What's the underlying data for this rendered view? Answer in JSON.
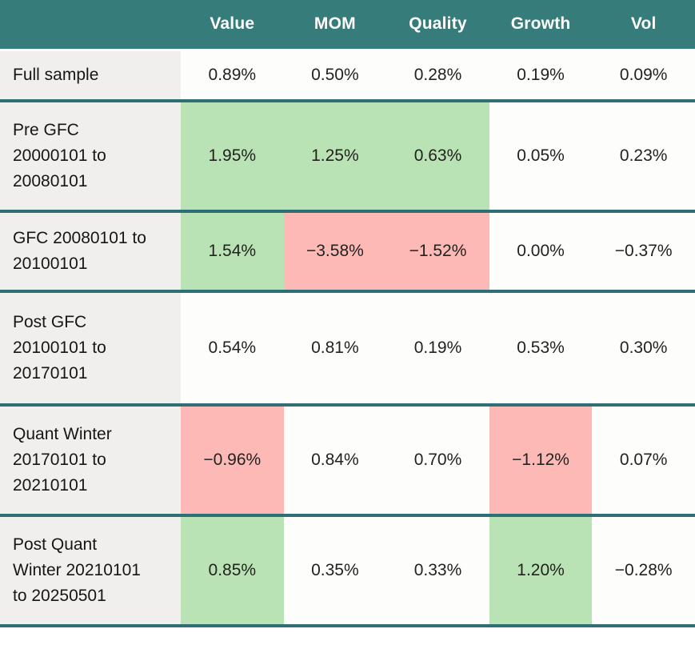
{
  "chart_data": {
    "type": "table",
    "columns": [
      "",
      "Value",
      "MOM",
      "Quality",
      "Growth",
      "Vol"
    ],
    "rows": [
      {
        "label": "Full sample",
        "values": [
          "0.89%",
          "0.50%",
          "0.28%",
          "0.19%",
          "0.09%"
        ],
        "highlights": [
          "none",
          "none",
          "none",
          "none",
          "none"
        ]
      },
      {
        "label": "Pre GFC 20000101 to 20080101",
        "values": [
          "1.95%",
          "1.25%",
          "0.63%",
          "0.05%",
          "0.23%"
        ],
        "highlights": [
          "green",
          "green",
          "green",
          "none",
          "none"
        ]
      },
      {
        "label": "GFC 20080101 to 20100101",
        "values": [
          "1.54%",
          "−3.58%",
          "−1.52%",
          "0.00%",
          "−0.37%"
        ],
        "highlights": [
          "green",
          "red",
          "red",
          "none",
          "none"
        ]
      },
      {
        "label": "Post GFC 20100101 to 20170101",
        "values": [
          "0.54%",
          "0.81%",
          "0.19%",
          "0.53%",
          "0.30%"
        ],
        "highlights": [
          "none",
          "none",
          "none",
          "none",
          "none"
        ]
      },
      {
        "label": "Quant Winter 20170101 to 20210101",
        "values": [
          "−0.96%",
          "0.84%",
          "0.70%",
          "−1.12%",
          "0.07%"
        ],
        "highlights": [
          "red",
          "none",
          "none",
          "red",
          "none"
        ]
      },
      {
        "label": "Post Quant Winter 20210101 to 20250501",
        "values": [
          "0.85%",
          "0.35%",
          "0.33%",
          "1.20%",
          "−0.28%"
        ],
        "highlights": [
          "green",
          "none",
          "none",
          "green",
          "none"
        ]
      }
    ],
    "colors": {
      "header_bg": "#357C7A",
      "header_text": "#FFFFFF",
      "divider": "#2E6F76",
      "positive_cell": "#BAE3B5",
      "negative_cell": "#FDB9B5",
      "label_column_bg": "#F0EFED",
      "cell_bg": "#FDFDFC",
      "body_text": "#1E1E1C"
    }
  }
}
